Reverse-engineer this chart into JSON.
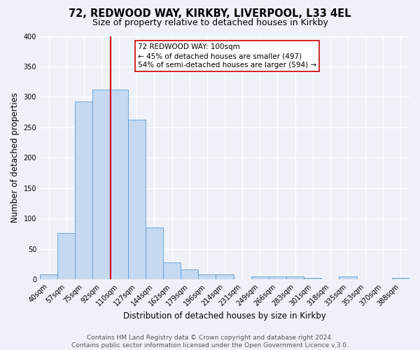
{
  "title": "72, REDWOOD WAY, KIRKBY, LIVERPOOL, L33 4EL",
  "subtitle": "Size of property relative to detached houses in Kirkby",
  "xlabel": "Distribution of detached houses by size in Kirkby",
  "ylabel": "Number of detached properties",
  "bin_labels": [
    "40sqm",
    "57sqm",
    "75sqm",
    "92sqm",
    "110sqm",
    "127sqm",
    "144sqm",
    "162sqm",
    "179sqm",
    "196sqm",
    "214sqm",
    "231sqm",
    "249sqm",
    "266sqm",
    "283sqm",
    "301sqm",
    "318sqm",
    "335sqm",
    "353sqm",
    "370sqm",
    "388sqm"
  ],
  "bar_heights": [
    8,
    76,
    292,
    312,
    312,
    263,
    85,
    28,
    16,
    8,
    8,
    0,
    5,
    5,
    5,
    2,
    0,
    5,
    0,
    0,
    2
  ],
  "bar_color": "#c5d9f0",
  "bar_edge_color": "#5b9bd5",
  "vline_x_idx": 3.5,
  "vline_color": "#cc0000",
  "annotation_text": "72 REDWOOD WAY: 100sqm\n← 45% of detached houses are smaller (497)\n54% of semi-detached houses are larger (594) →",
  "annotation_box_color": "#ffffff",
  "annotation_box_edge": "#cc0000",
  "ylim": [
    0,
    400
  ],
  "yticks": [
    0,
    50,
    100,
    150,
    200,
    250,
    300,
    350,
    400
  ],
  "footer_text": "Contains HM Land Registry data © Crown copyright and database right 2024.\nContains public sector information licensed under the Open Government Licence v.3.0.",
  "bg_color": "#eef2f8",
  "grid_color": "#ffffff",
  "title_fontsize": 10.5,
  "subtitle_fontsize": 9,
  "axis_label_fontsize": 8.5,
  "tick_fontsize": 7,
  "footer_fontsize": 6.5,
  "annotation_fontsize": 7.5
}
